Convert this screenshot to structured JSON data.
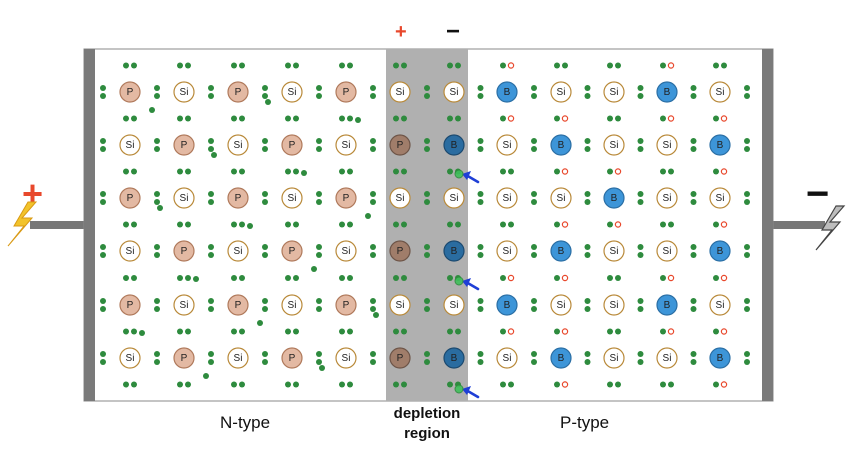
{
  "labels": {
    "n_type": "N-type",
    "p_type": "P-type",
    "depletion_line1": "depletion",
    "depletion_line2": "region"
  },
  "signs": {
    "top_left": "+",
    "top_right": "−",
    "battery_left": "+",
    "battery_right": "−"
  },
  "lattice": {
    "rows": [
      [
        "P",
        "Si",
        "P",
        "Si",
        "P",
        "Si",
        "Si",
        "B",
        "Si",
        "Si",
        "B",
        "Si"
      ],
      [
        "Si",
        "P",
        "Si",
        "P",
        "Si",
        "P",
        "B",
        "Si",
        "B",
        "Si",
        "Si",
        "B"
      ],
      [
        "P",
        "Si",
        "P",
        "Si",
        "P",
        "Si",
        "Si",
        "Si",
        "Si",
        "B",
        "Si",
        "Si"
      ],
      [
        "Si",
        "P",
        "Si",
        "P",
        "Si",
        "P",
        "B",
        "Si",
        "B",
        "Si",
        "Si",
        "B"
      ],
      [
        "P",
        "Si",
        "P",
        "Si",
        "P",
        "Si",
        "Si",
        "B",
        "Si",
        "Si",
        "B",
        "Si"
      ],
      [
        "Si",
        "P",
        "Si",
        "P",
        "Si",
        "P",
        "B",
        "Si",
        "B",
        "Si",
        "Si",
        "B"
      ]
    ],
    "depletion_columns": [
      5,
      6
    ]
  },
  "colors": {
    "electron": "#2e8b3e",
    "hole": "#e8482c",
    "phosphorus": "#e3b9a3",
    "phosphorus_depleted": "#a07d6a",
    "boron": "#3d95d8",
    "boron_depleted": "#2a6ca0",
    "silicon_ring": "#b98a3a",
    "depletion": "#b0b0b0",
    "wire": "#777777",
    "arrow": "#1f3fd6",
    "bolt": "#f2c32a"
  }
}
